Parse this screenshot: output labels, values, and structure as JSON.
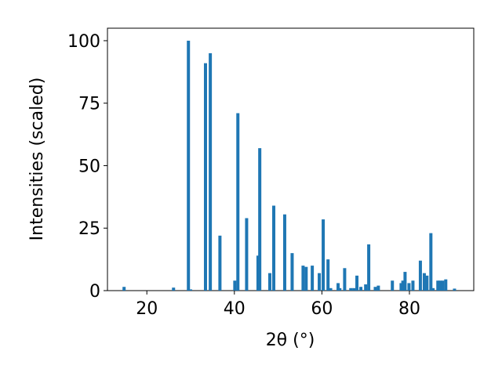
{
  "chart_data": {
    "type": "bar",
    "xlabel": "2θ (°)",
    "ylabel": "Intensities (scaled)",
    "color": "#1f77b4",
    "x": [
      14.8,
      26.1,
      29.5,
      30.0,
      33.4,
      34.5,
      36.7,
      40.1,
      40.8,
      42.8,
      45.4,
      45.8,
      48.1,
      49.0,
      51.5,
      53.2,
      55.7,
      56.4,
      57.8,
      59.4,
      60.3,
      61.4,
      62.0,
      63.7,
      64.1,
      65.2,
      66.6,
      67.3,
      68.0,
      68.9,
      70.0,
      70.7,
      72.2,
      72.9,
      76.1,
      78.1,
      78.5,
      79.0,
      79.9,
      80.8,
      82.5,
      83.4,
      84.0,
      84.9,
      85.4,
      86.5,
      87.0,
      87.6,
      88.3,
      90.3
    ],
    "values": [
      1.5,
      1.2,
      100,
      0.5,
      91,
      95,
      22,
      4,
      71,
      29,
      14,
      57,
      7,
      34,
      30.5,
      15,
      10,
      9.5,
      10,
      7,
      28.5,
      12.5,
      1,
      3,
      1,
      9,
      1,
      1,
      6,
      1.5,
      2.5,
      18.5,
      1.5,
      2,
      4,
      3,
      4,
      7.5,
      3,
      4,
      12,
      7,
      6,
      23,
      1,
      4,
      4,
      4,
      4.5,
      0.8
    ],
    "xlim": [
      11.0,
      94.7
    ],
    "ylim": [
      0,
      105
    ],
    "xticks": [
      20,
      40,
      60,
      80
    ],
    "yticks": [
      0,
      25,
      50,
      75,
      100
    ]
  }
}
